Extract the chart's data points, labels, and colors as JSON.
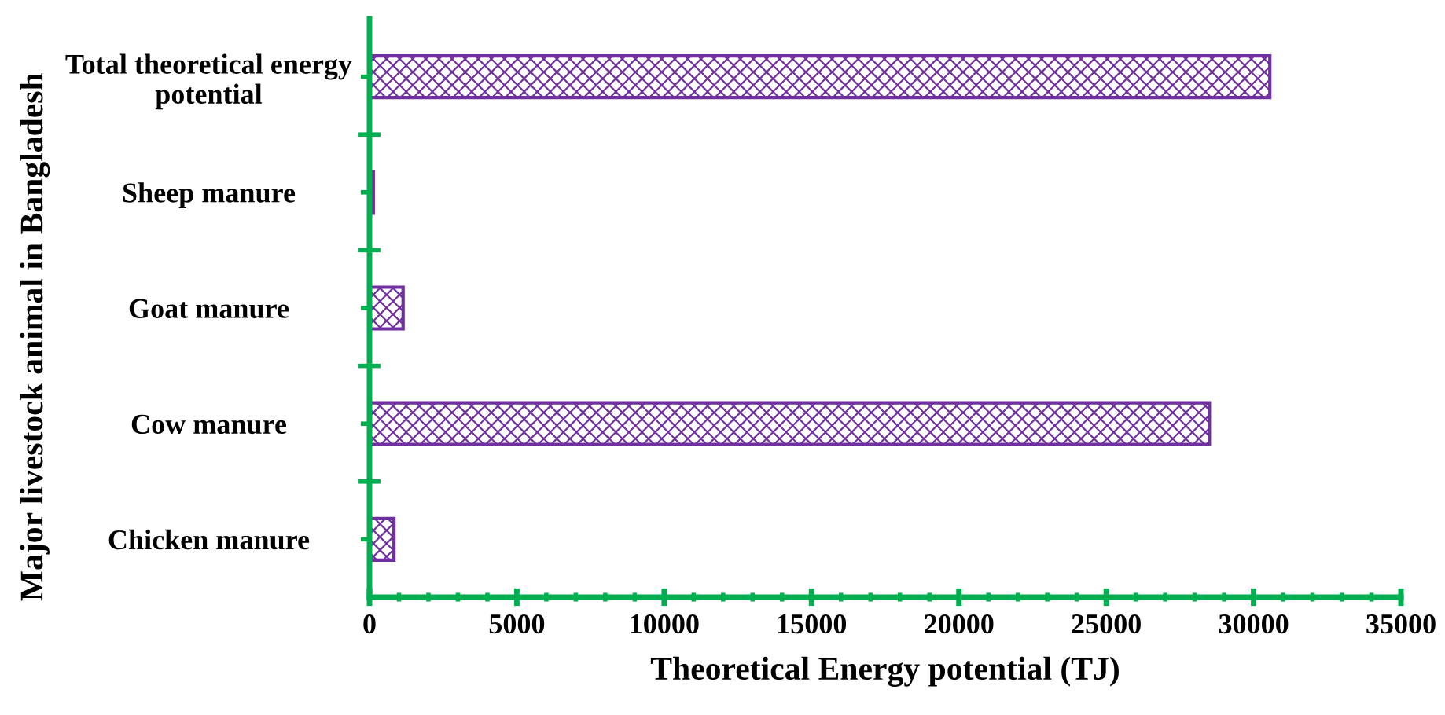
{
  "chart_data": {
    "type": "bar",
    "orientation": "horizontal",
    "xlabel": "Theoretical Energy potential (TJ)",
    "ylabel": "Major livestock animal in Bangladesh",
    "categories": [
      "Total theoretical energy\npotential",
      "Sheep manure",
      "Goat manure",
      "Cow manure",
      "Chicken manure"
    ],
    "series": [
      {
        "color": "#7030a0",
        "values": [
          30550,
          130,
          1140,
          28500,
          830
        ]
      }
    ],
    "xlim": [
      0,
      35000
    ],
    "xticks": [
      0,
      5000,
      10000,
      15000,
      20000,
      25000,
      30000,
      35000
    ],
    "grid": false,
    "legend": false
  }
}
